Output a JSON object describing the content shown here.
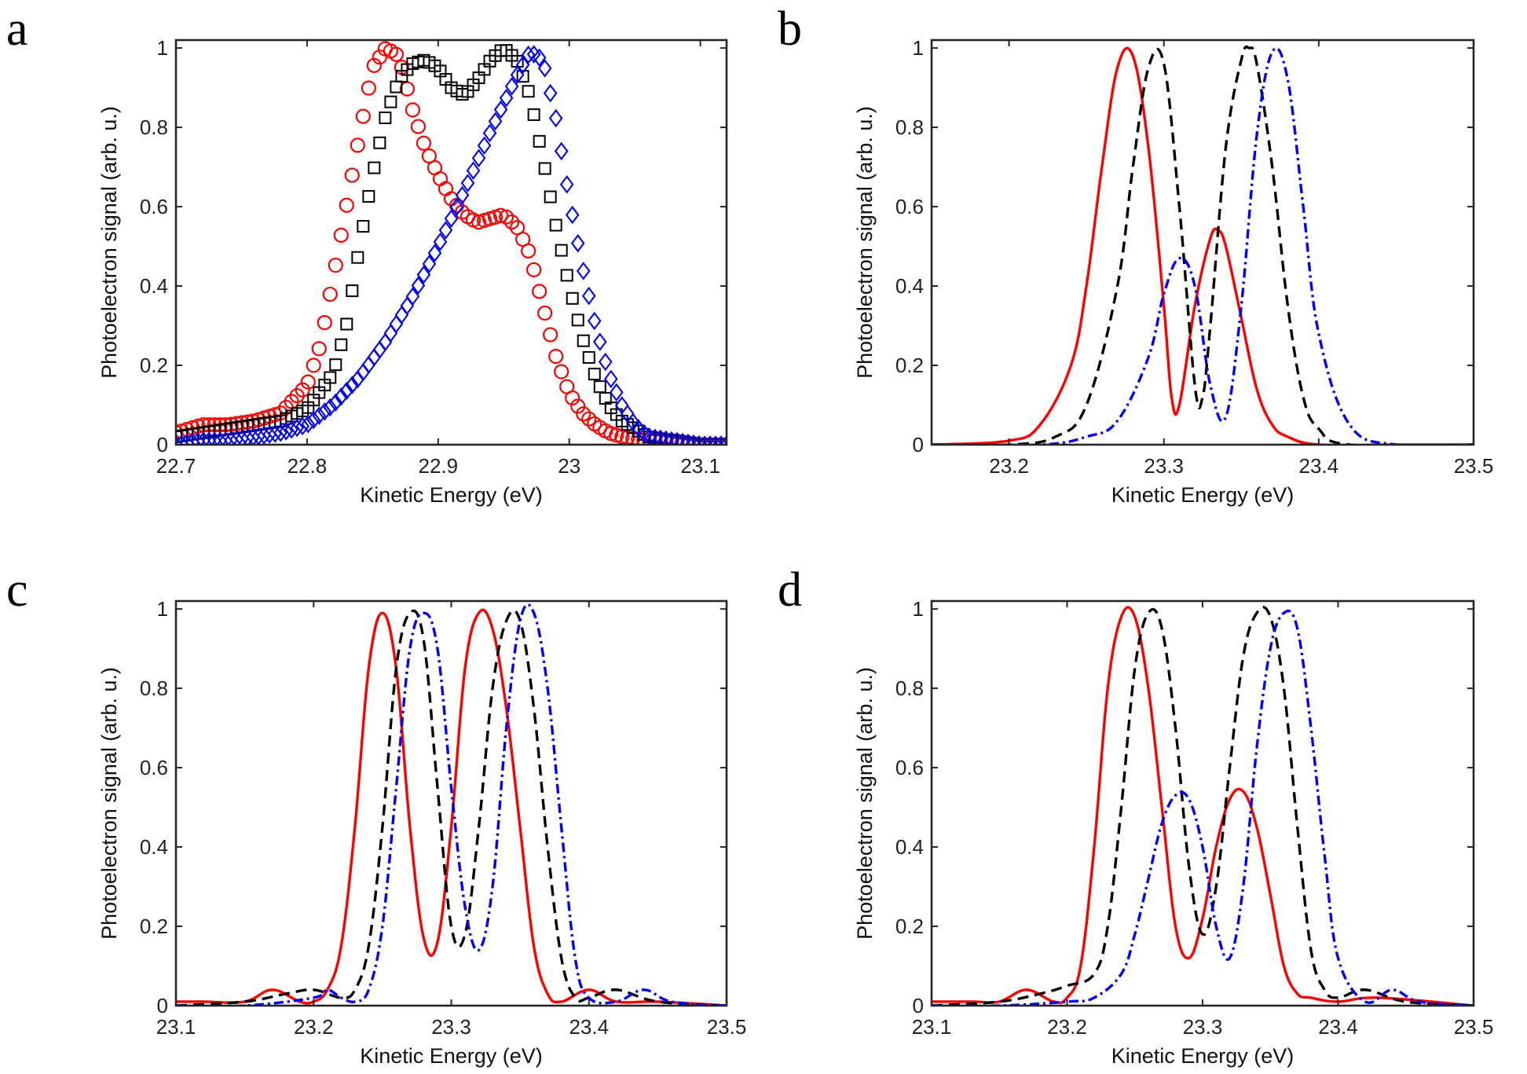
{
  "figure": {
    "panels": [
      "a",
      "b",
      "c",
      "d"
    ]
  },
  "colors": {
    "red": "#ff0000",
    "black": "#000000",
    "blue": "#0000ff"
  },
  "chart_data": [
    {
      "panel": "a",
      "type": "scatter",
      "xlabel": "Kinetic Energy (eV)",
      "ylabel": "Photoelectron signal (arb. u.)",
      "xlim": [
        22.7,
        23.12
      ],
      "ylim": [
        0,
        1.02
      ],
      "xticks": [
        22.7,
        22.8,
        22.9,
        23.0,
        23.1
      ],
      "xtick_labels": [
        "22.7",
        "22.8",
        "22.9",
        "23",
        "23.1"
      ],
      "yticks": [
        0,
        0.2,
        0.4,
        0.6,
        0.8,
        1
      ],
      "ytick_labels": [
        "0",
        "0.2",
        "0.4",
        "0.6",
        "0.8",
        "1"
      ],
      "series": [
        {
          "name": "red circles",
          "marker": "circle",
          "color": "#ff0000",
          "x": [
            22.7,
            22.72,
            22.74,
            22.76,
            22.78,
            22.8,
            22.81,
            22.82,
            22.83,
            22.84,
            22.85,
            22.86,
            22.87,
            22.88,
            22.89,
            22.9,
            22.91,
            22.92,
            22.93,
            22.94,
            22.95,
            22.96,
            22.97,
            22.98,
            22.99,
            23.0,
            23.01,
            23.02,
            23.03,
            23.04,
            23.06,
            23.08,
            23.1,
            23.12
          ],
          "y": [
            0.03,
            0.05,
            0.05,
            0.06,
            0.08,
            0.15,
            0.25,
            0.42,
            0.6,
            0.78,
            0.95,
            1.0,
            0.98,
            0.85,
            0.75,
            0.68,
            0.62,
            0.58,
            0.56,
            0.57,
            0.58,
            0.55,
            0.48,
            0.35,
            0.22,
            0.13,
            0.08,
            0.05,
            0.03,
            0.02,
            0.01,
            0.01,
            0.0,
            0.0
          ]
        },
        {
          "name": "black squares",
          "marker": "square",
          "color": "#000000",
          "x": [
            22.7,
            22.72,
            22.74,
            22.76,
            22.78,
            22.8,
            22.82,
            22.83,
            22.84,
            22.85,
            22.86,
            22.87,
            22.88,
            22.89,
            22.9,
            22.91,
            22.92,
            22.93,
            22.94,
            22.95,
            22.96,
            22.97,
            22.98,
            22.99,
            23.0,
            23.01,
            23.02,
            23.03,
            23.04,
            23.06,
            23.08,
            23.1,
            23.12
          ],
          "y": [
            0.02,
            0.03,
            0.04,
            0.05,
            0.06,
            0.09,
            0.18,
            0.3,
            0.5,
            0.68,
            0.83,
            0.92,
            0.96,
            0.97,
            0.95,
            0.9,
            0.88,
            0.92,
            0.97,
            1.0,
            0.97,
            0.88,
            0.72,
            0.55,
            0.4,
            0.27,
            0.17,
            0.1,
            0.06,
            0.02,
            0.01,
            0.0,
            0.0
          ]
        },
        {
          "name": "blue diamonds",
          "marker": "diamond",
          "color": "#0000ff",
          "x": [
            22.7,
            22.72,
            22.74,
            22.76,
            22.78,
            22.8,
            22.82,
            22.84,
            22.86,
            22.88,
            22.9,
            22.92,
            22.94,
            22.96,
            22.97,
            22.98,
            22.99,
            23.0,
            23.01,
            23.02,
            23.03,
            23.04,
            23.05,
            23.06,
            23.08,
            23.1,
            23.12
          ],
          "y": [
            0.0,
            0.01,
            0.01,
            0.02,
            0.03,
            0.05,
            0.1,
            0.17,
            0.26,
            0.37,
            0.5,
            0.64,
            0.79,
            0.93,
            0.99,
            0.97,
            0.82,
            0.62,
            0.45,
            0.3,
            0.18,
            0.1,
            0.05,
            0.02,
            0.01,
            0.0,
            0.0
          ]
        }
      ]
    },
    {
      "panel": "b",
      "type": "line",
      "xlabel": "Kinetic Energy (eV)",
      "ylabel": "Photoelectron signal (arb. u.)",
      "xlim": [
        23.15,
        23.5
      ],
      "ylim": [
        0,
        1.02
      ],
      "xticks": [
        23.2,
        23.3,
        23.4,
        23.5
      ],
      "xtick_labels": [
        "23.2",
        "23.3",
        "23.4",
        "23.5"
      ],
      "yticks": [
        0,
        0.2,
        0.4,
        0.6,
        0.8,
        1
      ],
      "ytick_labels": [
        "0",
        "0.2",
        "0.4",
        "0.6",
        "0.8",
        "1"
      ],
      "series": [
        {
          "name": "red solid",
          "style": "solid",
          "color": "#ff0000",
          "x": [
            23.15,
            23.2,
            23.22,
            23.24,
            23.25,
            23.26,
            23.27,
            23.28,
            23.29,
            23.3,
            23.305,
            23.31,
            23.32,
            23.33,
            23.335,
            23.34,
            23.35,
            23.36,
            23.37,
            23.38,
            23.4,
            23.45,
            23.5
          ],
          "y": [
            0.0,
            0.01,
            0.05,
            0.2,
            0.4,
            0.7,
            0.95,
            0.98,
            0.75,
            0.35,
            0.12,
            0.1,
            0.35,
            0.52,
            0.54,
            0.5,
            0.32,
            0.14,
            0.05,
            0.02,
            0.0,
            0.0,
            0.0
          ]
        },
        {
          "name": "black dashed",
          "style": "dashed",
          "color": "#000000",
          "x": [
            23.15,
            23.2,
            23.23,
            23.25,
            23.27,
            23.28,
            23.29,
            23.3,
            23.31,
            23.32,
            23.325,
            23.33,
            23.34,
            23.35,
            23.355,
            23.36,
            23.37,
            23.38,
            23.39,
            23.4,
            23.42,
            23.5
          ],
          "y": [
            0.0,
            0.0,
            0.02,
            0.1,
            0.4,
            0.7,
            0.95,
            0.96,
            0.6,
            0.15,
            0.12,
            0.3,
            0.75,
            0.97,
            1.0,
            0.96,
            0.7,
            0.35,
            0.12,
            0.04,
            0.0,
            0.0
          ],
          "peaks": [
            23.297,
            23.355
          ]
        },
        {
          "name": "blue dash-dot",
          "style": "dashdot",
          "color": "#0000ff",
          "x": [
            23.15,
            23.22,
            23.25,
            23.27,
            23.29,
            23.3,
            23.31,
            23.32,
            23.33,
            23.34,
            23.35,
            23.36,
            23.37,
            23.38,
            23.39,
            23.4,
            23.42,
            23.45,
            23.5
          ],
          "y": [
            0.0,
            0.0,
            0.02,
            0.06,
            0.22,
            0.38,
            0.47,
            0.4,
            0.15,
            0.07,
            0.35,
            0.78,
            0.99,
            0.92,
            0.6,
            0.28,
            0.05,
            0.0,
            0.0
          ]
        }
      ]
    },
    {
      "panel": "c",
      "type": "line",
      "xlabel": "Kinetic Energy (eV)",
      "ylabel": "Photoelectron signal (arb. u.)",
      "xlim": [
        23.1,
        23.5
      ],
      "ylim": [
        0,
        1.02
      ],
      "xticks": [
        23.1,
        23.2,
        23.3,
        23.4,
        23.5
      ],
      "xtick_labels": [
        "23.1",
        "23.2",
        "23.3",
        "23.4",
        "23.5"
      ],
      "yticks": [
        0,
        0.2,
        0.4,
        0.6,
        0.8,
        1
      ],
      "ytick_labels": [
        "0",
        "0.2",
        "0.4",
        "0.6",
        "0.8",
        "1"
      ],
      "series": [
        {
          "name": "red solid",
          "style": "solid",
          "color": "#ff0000",
          "x": [
            23.1,
            23.12,
            23.15,
            23.17,
            23.19,
            23.2,
            23.21,
            23.22,
            23.23,
            23.24,
            23.25,
            23.26,
            23.27,
            23.28,
            23.29,
            23.3,
            23.31,
            23.32,
            23.33,
            23.34,
            23.35,
            23.36,
            23.37,
            23.38,
            23.4,
            23.42,
            23.45,
            23.5
          ],
          "y": [
            0.01,
            0.01,
            0.01,
            0.04,
            0.01,
            0.01,
            0.04,
            0.15,
            0.45,
            0.85,
            0.99,
            0.85,
            0.45,
            0.17,
            0.16,
            0.45,
            0.85,
            0.99,
            0.95,
            0.75,
            0.45,
            0.15,
            0.03,
            0.01,
            0.04,
            0.01,
            0.01,
            0.0
          ]
        },
        {
          "name": "black dashed",
          "style": "dashed",
          "color": "#000000",
          "x": [
            23.1,
            23.15,
            23.18,
            23.2,
            23.22,
            23.23,
            23.24,
            23.25,
            23.26,
            23.27,
            23.28,
            23.29,
            23.3,
            23.31,
            23.32,
            23.33,
            23.34,
            23.35,
            23.36,
            23.37,
            23.38,
            23.39,
            23.4,
            23.42,
            23.45,
            23.5
          ],
          "y": [
            0.0,
            0.01,
            0.03,
            0.04,
            0.02,
            0.04,
            0.15,
            0.45,
            0.85,
            0.99,
            0.92,
            0.55,
            0.2,
            0.18,
            0.45,
            0.8,
            0.97,
            0.97,
            0.75,
            0.4,
            0.12,
            0.02,
            0.02,
            0.04,
            0.01,
            0.0
          ]
        },
        {
          "name": "blue dash-dot",
          "style": "dashdot",
          "color": "#0000ff",
          "x": [
            23.1,
            23.15,
            23.2,
            23.21,
            23.22,
            23.23,
            23.24,
            23.25,
            23.26,
            23.27,
            23.28,
            23.29,
            23.3,
            23.31,
            23.32,
            23.33,
            23.34,
            23.35,
            23.36,
            23.37,
            23.38,
            23.39,
            23.4,
            23.42,
            23.44,
            23.46,
            23.5
          ],
          "y": [
            0.0,
            0.0,
            0.02,
            0.04,
            0.02,
            0.01,
            0.04,
            0.2,
            0.55,
            0.9,
            0.99,
            0.9,
            0.55,
            0.25,
            0.14,
            0.3,
            0.7,
            0.97,
            0.99,
            0.8,
            0.45,
            0.12,
            0.02,
            0.01,
            0.04,
            0.01,
            0.0
          ]
        }
      ]
    },
    {
      "panel": "d",
      "type": "line",
      "xlabel": "Kinetic Energy (eV)",
      "ylabel": "Photoelectron signal (arb. u.)",
      "xlim": [
        23.1,
        23.5
      ],
      "ylim": [
        0,
        1.02
      ],
      "xticks": [
        23.1,
        23.2,
        23.3,
        23.4,
        23.5
      ],
      "xtick_labels": [
        "23.1",
        "23.2",
        "23.3",
        "23.4",
        "23.5"
      ],
      "yticks": [
        0,
        0.2,
        0.4,
        0.6,
        0.8,
        1
      ],
      "ytick_labels": [
        "0",
        "0.2",
        "0.4",
        "0.6",
        "0.8",
        "1"
      ],
      "series": [
        {
          "name": "red solid",
          "style": "solid",
          "color": "#ff0000",
          "x": [
            23.1,
            23.13,
            23.15,
            23.17,
            23.19,
            23.2,
            23.21,
            23.22,
            23.23,
            23.24,
            23.25,
            23.26,
            23.27,
            23.28,
            23.29,
            23.3,
            23.31,
            23.32,
            23.33,
            23.34,
            23.35,
            23.36,
            23.37,
            23.38,
            23.4,
            23.43,
            23.5
          ],
          "y": [
            0.01,
            0.01,
            0.01,
            0.04,
            0.01,
            0.02,
            0.1,
            0.4,
            0.8,
            0.98,
            0.98,
            0.8,
            0.5,
            0.2,
            0.12,
            0.22,
            0.4,
            0.52,
            0.54,
            0.45,
            0.28,
            0.1,
            0.03,
            0.02,
            0.01,
            0.02,
            0.0
          ]
        },
        {
          "name": "black dashed",
          "style": "dashed",
          "color": "#000000",
          "x": [
            23.1,
            23.15,
            23.18,
            23.2,
            23.22,
            23.23,
            23.24,
            23.25,
            23.26,
            23.27,
            23.28,
            23.29,
            23.3,
            23.31,
            23.32,
            23.33,
            23.34,
            23.35,
            23.36,
            23.37,
            23.38,
            23.39,
            23.4,
            23.42,
            23.45,
            23.5
          ],
          "y": [
            0.0,
            0.01,
            0.03,
            0.05,
            0.08,
            0.2,
            0.5,
            0.85,
            0.99,
            0.95,
            0.7,
            0.35,
            0.18,
            0.3,
            0.6,
            0.88,
            0.99,
            0.98,
            0.8,
            0.45,
            0.14,
            0.04,
            0.02,
            0.04,
            0.01,
            0.0
          ]
        },
        {
          "name": "blue dash-dot",
          "style": "dashdot",
          "color": "#0000ff",
          "x": [
            23.1,
            23.15,
            23.2,
            23.22,
            23.24,
            23.25,
            23.26,
            23.27,
            23.28,
            23.29,
            23.3,
            23.31,
            23.32,
            23.33,
            23.34,
            23.35,
            23.36,
            23.37,
            23.38,
            23.39,
            23.4,
            23.42,
            23.44,
            23.46,
            23.5
          ],
          "y": [
            0.0,
            0.0,
            0.01,
            0.02,
            0.08,
            0.18,
            0.32,
            0.46,
            0.53,
            0.52,
            0.4,
            0.2,
            0.12,
            0.3,
            0.65,
            0.9,
            0.99,
            0.95,
            0.7,
            0.38,
            0.12,
            0.01,
            0.04,
            0.01,
            0.0
          ]
        }
      ]
    }
  ]
}
